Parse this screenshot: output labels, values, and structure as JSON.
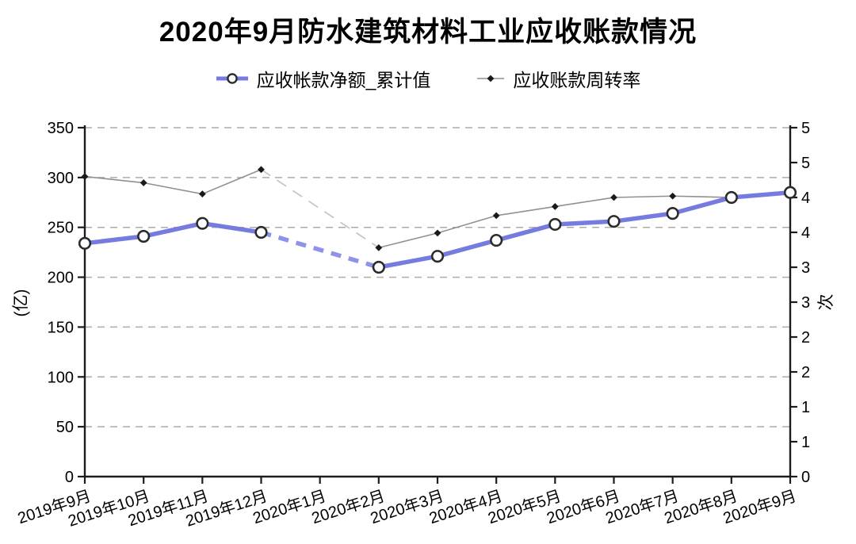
{
  "title": "2020年9月防水建筑材料工业应收账款情况",
  "legend": {
    "items": [
      {
        "label": "应收帐款净额_累计值",
        "marker": "line-circle",
        "color": "#767be0"
      },
      {
        "label": "应收账款周转率",
        "marker": "line-diamond",
        "color": "#909090"
      }
    ]
  },
  "colors": {
    "primary_line": "#767be0",
    "primary_line_dashed": "#8e92e8",
    "secondary_line": "#909090",
    "secondary_line_dashed": "#c6c6c6",
    "marker_stroke": "#2b2b2b",
    "grid": "#ababab",
    "axis": "#1c1c1c",
    "text": "#000000"
  },
  "chart_data": {
    "type": "line",
    "title": "2020年9月防水建筑材料工业应收账款情况",
    "categories": [
      "2019年9月",
      "2019年10月",
      "2019年11月",
      "2019年12月",
      "2020年1月",
      "2020年2月",
      "2020年3月",
      "2020年4月",
      "2020年5月",
      "2020年6月",
      "2020年7月",
      "2020年8月",
      "2020年9月"
    ],
    "series": [
      {
        "name": "应收帐款净额_累计值",
        "axis": "left",
        "unit": "亿",
        "style": "thick-line-open-circle",
        "values": [
          234,
          241,
          254,
          245,
          null,
          210,
          221,
          237,
          253,
          256,
          264,
          280,
          285
        ]
      },
      {
        "name": "应收账款周转率",
        "axis": "right",
        "unit": "次",
        "style": "thin-line-diamond",
        "values": [
          4.3,
          4.21,
          4.05,
          4.4,
          null,
          3.28,
          3.49,
          3.74,
          3.87,
          4.0,
          4.02,
          4.0,
          4.08
        ]
      }
    ],
    "missing_category": "2020年1月",
    "gap_style": "dashed-bridge",
    "grid": true,
    "legend_position": "top",
    "left_axis": {
      "label": "(亿)",
      "min": 0,
      "max": 350,
      "tick_step": 50
    },
    "right_axis": {
      "label": "次",
      "min": 0,
      "max": 5,
      "tick_step": 0.5,
      "tick_labels": [
        "0",
        "1",
        "1",
        "2",
        "2",
        "3",
        "3",
        "4",
        "4",
        "5",
        "5"
      ]
    },
    "x_label_rotation_deg": -18
  }
}
